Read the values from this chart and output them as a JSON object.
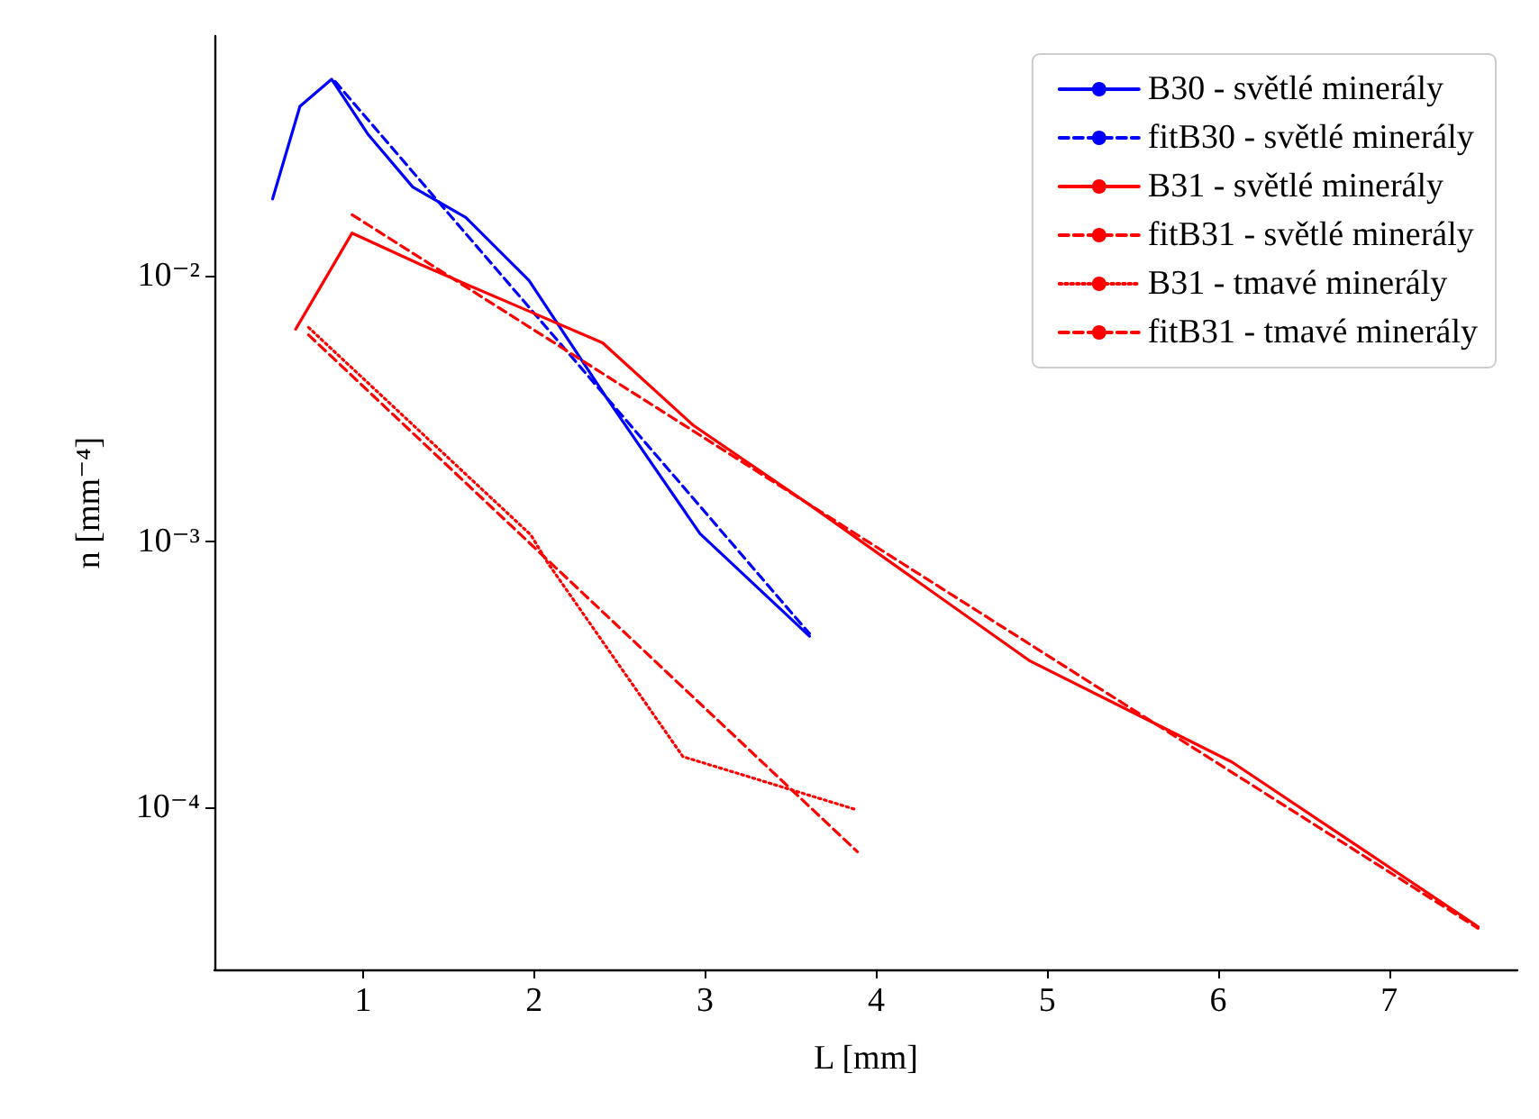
{
  "chart_data": {
    "type": "line",
    "xlabel": "L [mm]",
    "ylabel": "n [mm⁻⁴]",
    "log": "y",
    "grid": false,
    "legend": "top right",
    "marker": "none",
    "xlim": [
      0.13,
      7.75
    ],
    "xticks": [
      1,
      2,
      3,
      4,
      5,
      6,
      7
    ],
    "ylim": [
      2.45e-05,
      0.08
    ],
    "yticks": [
      {
        "value": 0.0001,
        "label": "10⁻⁴"
      },
      {
        "value": 0.001,
        "label": "10⁻³"
      },
      {
        "value": 0.01,
        "label": "10⁻²"
      }
    ],
    "series": [
      {
        "name": "B30 - světlé minerály",
        "color": "#0000ff",
        "line_style": "solid",
        "x": [
          0.47,
          0.63,
          0.815,
          1.03,
          1.29,
          1.6,
          1.97,
          2.42,
          2.97,
          3.61
        ],
        "values": [
          0.0195,
          0.0435,
          0.055,
          0.034,
          0.0216,
          0.0166,
          0.0096,
          0.0035,
          0.00107,
          0.00044
        ]
      },
      {
        "name": "fitB30 - světlé minerály",
        "color": "#0000ff",
        "line_style": "dashed",
        "x": [
          0.835,
          3.61
        ],
        "values": [
          0.054,
          0.00045
        ]
      },
      {
        "name": "B31 - světlé minerály",
        "color": "#ff0000",
        "line_style": "solid",
        "x": [
          0.605,
          0.935,
          1.34,
          1.92,
          2.4,
          2.93,
          3.6,
          4.9,
          6.08,
          7.52
        ],
        "values": [
          0.0063,
          0.0145,
          0.011,
          0.0076,
          0.0056,
          0.00274,
          0.00139,
          0.000355,
          0.000148,
          3.55e-05
        ]
      },
      {
        "name": "fitB31 - světlé minerály",
        "color": "#ff0000",
        "line_style": "dashed",
        "x": [
          0.935,
          7.52
        ],
        "values": [
          0.017,
          3.5e-05
        ]
      },
      {
        "name": "B31 - tmavé minerály",
        "color": "#ff0000",
        "line_style": "dotted",
        "x": [
          0.68,
          1.98,
          2.08,
          2.87,
          3.88
        ],
        "values": [
          0.0064,
          0.00106,
          0.00083,
          0.000155,
          9.8e-05
        ]
      },
      {
        "name": "fitB31 - tmavé minerály",
        "color": "#ff0000",
        "line_style": "dashed",
        "x": [
          0.68,
          3.89
        ],
        "values": [
          0.006,
          6.8e-05
        ]
      }
    ]
  }
}
